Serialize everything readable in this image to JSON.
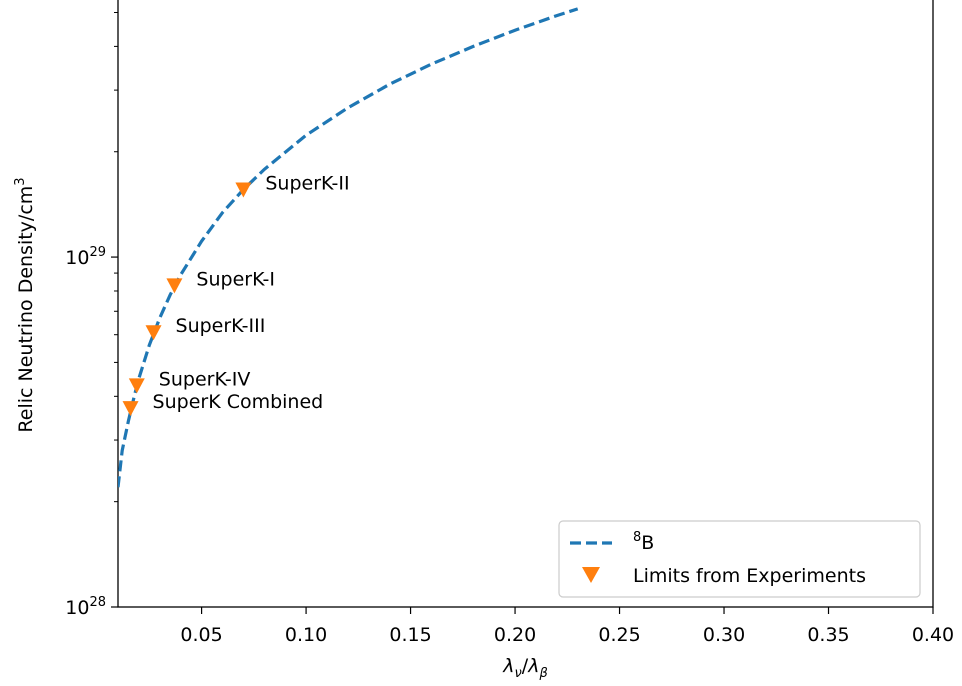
{
  "chart_data": {
    "type": "scatter",
    "title": "",
    "xlabel": "λ_ν/λ_β",
    "xlabel_parts": {
      "num": "λ",
      "num_sub": "ν",
      "sep": "/",
      "den": "λ",
      "den_sub": "β"
    },
    "ylabel": "Relic Neutrino Density/cm³",
    "ylabel_parts": {
      "text": "Relic Neutrino Density/cm",
      "sup": "3"
    },
    "xlim": [
      0.01,
      0.4
    ],
    "ylim": [
      1e+28,
      5.5e+29
    ],
    "yscale": "log",
    "grid": false,
    "legend_position": "lower-right",
    "x_ticks": [
      {
        "value": 0.05,
        "label": "0.05"
      },
      {
        "value": 0.1,
        "label": "0.10"
      },
      {
        "value": 0.15,
        "label": "0.15"
      },
      {
        "value": 0.2,
        "label": "0.20"
      },
      {
        "value": 0.25,
        "label": "0.25"
      },
      {
        "value": 0.3,
        "label": "0.30"
      },
      {
        "value": 0.35,
        "label": "0.35"
      },
      {
        "value": 0.4,
        "label": "0.40"
      }
    ],
    "y_ticks": [
      {
        "value": 1e+28,
        "base": "10",
        "exp": "28"
      },
      {
        "value": 1e+29,
        "base": "10",
        "exp": "29"
      }
    ],
    "series": [
      {
        "name": "⁸B",
        "name_parts": {
          "sup": "8",
          "text": "B"
        },
        "kind": "line",
        "style": "dashed",
        "color": "#1f77b4",
        "x": [
          0.01,
          0.012,
          0.015,
          0.018,
          0.02,
          0.025,
          0.03,
          0.035,
          0.04,
          0.05,
          0.06,
          0.07,
          0.08,
          0.1,
          0.12,
          0.14,
          0.16,
          0.18,
          0.2,
          0.22,
          0.23
        ],
        "y": [
          2.2e+28,
          2.8e+28,
          3.4e+28,
          4.05e+28,
          4.5e+28,
          5.6e+28,
          6.7e+28,
          7.8e+28,
          8.9e+28,
          1.11e+29,
          1.34e+29,
          1.56e+29,
          1.78e+29,
          2.23e+29,
          2.67e+29,
          3.12e+29,
          3.56e+29,
          4e+29,
          4.45e+29,
          4.9e+29,
          5.12e+29
        ]
      },
      {
        "name": "Limits from Experiments",
        "kind": "markers",
        "marker": "triangle-down",
        "color": "#ff7f0e",
        "points": [
          {
            "label": "SuperK-II",
            "x": 0.07,
            "y": 1.56e+29
          },
          {
            "label": "SuperK-I",
            "x": 0.037,
            "y": 8.3e+28
          },
          {
            "label": "SuperK-III",
            "x": 0.027,
            "y": 6.1e+28
          },
          {
            "label": "SuperK-IV",
            "x": 0.019,
            "y": 4.3e+28
          },
          {
            "label": "SuperK Combined",
            "x": 0.016,
            "y": 3.7e+28
          }
        ]
      }
    ]
  }
}
